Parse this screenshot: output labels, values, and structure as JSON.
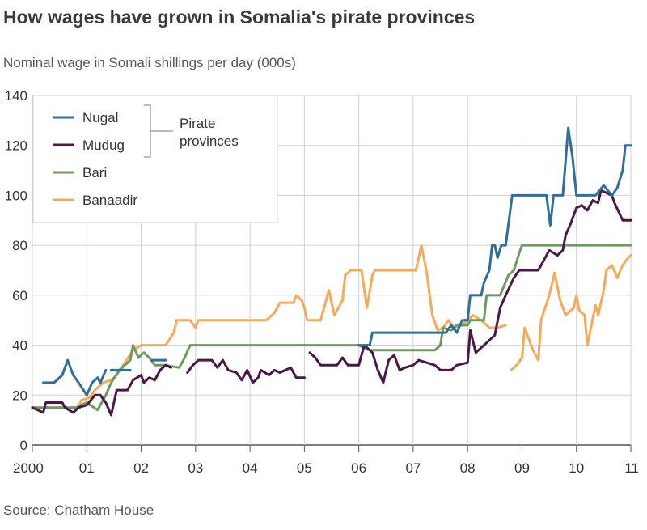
{
  "title": "How wages have grown in Somalia's pirate provinces",
  "subtitle": "Nominal wage in Somali shillings per day (000s)",
  "source": "Source: Chatham House",
  "chart_data": {
    "type": "line",
    "title": "How wages have grown in Somalia's pirate provinces",
    "ylabel": "Nominal wage in Somali shillings per day (000s)",
    "xlabel": "",
    "xlim": [
      2000,
      2011
    ],
    "ylim": [
      0,
      140
    ],
    "yticks": [
      0,
      20,
      40,
      60,
      80,
      100,
      120,
      140
    ],
    "xticks": [
      2000,
      2001,
      2002,
      2003,
      2004,
      2005,
      2006,
      2007,
      2008,
      2009,
      2010,
      2011
    ],
    "xtick_labels": [
      "2000",
      "01",
      "02",
      "03",
      "04",
      "05",
      "06",
      "07",
      "08",
      "09",
      "10",
      "11"
    ],
    "grid": true,
    "legend_position": "top-left",
    "legend_group_label": [
      "Pirate",
      "provinces"
    ],
    "series": [
      {
        "name": "Nugal",
        "color": "#2f6f9e",
        "segments": [
          [
            [
              2000.2,
              25
            ],
            [
              2000.4,
              25
            ],
            [
              2000.55,
              28
            ],
            [
              2000.65,
              34
            ],
            [
              2000.75,
              28
            ],
            [
              2000.85,
              25
            ],
            [
              2001.0,
              20
            ],
            [
              2001.1,
              25
            ],
            [
              2001.2,
              27
            ],
            [
              2001.25,
              25
            ],
            [
              2001.35,
              30
            ]
          ],
          [
            [
              2001.45,
              30
            ],
            [
              2001.8,
              30
            ]
          ],
          [
            [
              2002.2,
              34
            ],
            [
              2002.45,
              34
            ]
          ],
          [
            [
              2006.0,
              40
            ],
            [
              2006.2,
              40
            ],
            [
              2006.25,
              45
            ],
            [
              2007.6,
              45
            ],
            [
              2007.7,
              48
            ],
            [
              2007.8,
              45
            ],
            [
              2007.9,
              50
            ],
            [
              2008.0,
              50
            ],
            [
              2008.05,
              60
            ],
            [
              2008.25,
              60
            ],
            [
              2008.3,
              65
            ],
            [
              2008.4,
              70
            ],
            [
              2008.45,
              80
            ],
            [
              2008.5,
              80
            ],
            [
              2008.55,
              75
            ],
            [
              2008.62,
              80
            ],
            [
              2008.7,
              80
            ],
            [
              2008.82,
              100
            ],
            [
              2009.45,
              100
            ],
            [
              2009.52,
              88
            ],
            [
              2009.58,
              100
            ],
            [
              2009.75,
              100
            ],
            [
              2009.85,
              127
            ],
            [
              2009.93,
              115
            ],
            [
              2010.0,
              100
            ],
            [
              2010.35,
              100
            ],
            [
              2010.5,
              104
            ],
            [
              2010.65,
              100
            ],
            [
              2010.75,
              103
            ],
            [
              2010.85,
              110
            ],
            [
              2010.9,
              120
            ],
            [
              2011.0,
              120
            ]
          ]
        ]
      },
      {
        "name": "Mudug",
        "color": "#4a1747",
        "segments": [
          [
            [
              2000.0,
              15
            ],
            [
              2000.2,
              13
            ],
            [
              2000.25,
              17
            ],
            [
              2000.55,
              17
            ],
            [
              2000.6,
              15
            ],
            [
              2000.75,
              13
            ],
            [
              2000.85,
              15
            ],
            [
              2001.0,
              16
            ],
            [
              2001.15,
              20
            ],
            [
              2001.25,
              20
            ],
            [
              2001.35,
              17
            ],
            [
              2001.45,
              12
            ],
            [
              2001.55,
              22
            ],
            [
              2001.75,
              22
            ],
            [
              2001.85,
              26
            ],
            [
              2002.0,
              28
            ],
            [
              2002.05,
              25
            ],
            [
              2002.15,
              27
            ],
            [
              2002.25,
              26
            ],
            [
              2002.35,
              30
            ],
            [
              2002.45,
              32
            ],
            [
              2002.55,
              31
            ]
          ],
          [
            [
              2002.85,
              29
            ],
            [
              2002.95,
              32
            ],
            [
              2003.05,
              34
            ],
            [
              2003.3,
              34
            ],
            [
              2003.4,
              31
            ],
            [
              2003.5,
              34
            ],
            [
              2003.6,
              30
            ],
            [
              2003.75,
              29
            ],
            [
              2003.85,
              26
            ],
            [
              2003.95,
              30
            ],
            [
              2004.05,
              25
            ],
            [
              2004.15,
              27
            ],
            [
              2004.2,
              30
            ],
            [
              2004.35,
              28
            ],
            [
              2004.45,
              30
            ],
            [
              2004.55,
              29
            ],
            [
              2004.65,
              30
            ],
            [
              2004.75,
              31
            ],
            [
              2004.85,
              27
            ],
            [
              2005.0,
              27
            ]
          ],
          [
            [
              2005.1,
              37
            ],
            [
              2005.2,
              35
            ],
            [
              2005.3,
              32
            ],
            [
              2005.6,
              32
            ],
            [
              2005.7,
              35
            ],
            [
              2005.8,
              32
            ],
            [
              2006.0,
              32
            ],
            [
              2006.1,
              40
            ],
            [
              2006.25,
              37
            ],
            [
              2006.35,
              30
            ],
            [
              2006.45,
              25
            ],
            [
              2006.55,
              34
            ],
            [
              2006.65,
              36
            ],
            [
              2006.75,
              30
            ],
            [
              2006.85,
              31
            ],
            [
              2007.0,
              32
            ],
            [
              2007.1,
              34
            ],
            [
              2007.4,
              32
            ],
            [
              2007.5,
              30
            ],
            [
              2007.7,
              30
            ],
            [
              2007.8,
              32
            ],
            [
              2008.0,
              33
            ],
            [
              2008.05,
              46
            ],
            [
              2008.15,
              37
            ],
            [
              2008.3,
              40
            ],
            [
              2008.5,
              44
            ],
            [
              2008.6,
              55
            ],
            [
              2008.7,
              60
            ],
            [
              2008.85,
              67
            ],
            [
              2008.95,
              70
            ],
            [
              2009.3,
              70
            ],
            [
              2009.4,
              74
            ],
            [
              2009.5,
              78
            ],
            [
              2009.65,
              76
            ],
            [
              2009.75,
              78
            ],
            [
              2009.8,
              84
            ],
            [
              2009.9,
              89
            ],
            [
              2010.0,
              95
            ],
            [
              2010.1,
              96
            ],
            [
              2010.2,
              94
            ],
            [
              2010.3,
              98
            ],
            [
              2010.4,
              97
            ],
            [
              2010.45,
              102
            ],
            [
              2010.55,
              101
            ],
            [
              2010.65,
              100
            ],
            [
              2010.7,
              97
            ],
            [
              2010.85,
              90
            ],
            [
              2011.0,
              90
            ]
          ]
        ]
      },
      {
        "name": "Bari",
        "color": "#6f9963",
        "segments": [
          [
            [
              2000.0,
              15
            ],
            [
              2000.2,
              15
            ],
            [
              2000.5,
              15
            ],
            [
              2000.8,
              15
            ],
            [
              2001.0,
              17
            ],
            [
              2001.2,
              14
            ],
            [
              2001.35,
              20
            ],
            [
              2001.45,
              25
            ],
            [
              2001.6,
              30
            ],
            [
              2001.7,
              32
            ],
            [
              2001.8,
              34
            ],
            [
              2001.85,
              40
            ],
            [
              2001.95,
              35
            ],
            [
              2002.05,
              37
            ],
            [
              2002.15,
              35
            ],
            [
              2002.25,
              32
            ],
            [
              2002.45,
              32
            ],
            [
              2002.7,
              31
            ],
            [
              2002.8,
              35
            ],
            [
              2002.9,
              40
            ],
            [
              2005.5,
              40
            ],
            [
              2006.0,
              40
            ],
            [
              2006.2,
              38
            ],
            [
              2006.5,
              38
            ],
            [
              2007.0,
              38
            ],
            [
              2007.4,
              38
            ],
            [
              2007.5,
              40
            ],
            [
              2007.55,
              47
            ],
            [
              2007.7,
              46
            ],
            [
              2007.8,
              48
            ],
            [
              2008.0,
              48
            ],
            [
              2008.05,
              50
            ],
            [
              2008.3,
              50
            ],
            [
              2008.35,
              60
            ],
            [
              2008.6,
              60
            ],
            [
              2008.75,
              68
            ],
            [
              2008.85,
              70
            ],
            [
              2008.95,
              77
            ],
            [
              2009.0,
              80
            ],
            [
              2011.0,
              80
            ]
          ]
        ]
      },
      {
        "name": "Banaadir",
        "color": "#f4aa59",
        "segments": [
          [
            [
              2000.0,
              15
            ],
            [
              2000.5,
              15
            ],
            [
              2000.85,
              15
            ],
            [
              2000.9,
              18
            ],
            [
              2001.05,
              19
            ],
            [
              2001.15,
              22
            ],
            [
              2001.3,
              25
            ],
            [
              2001.45,
              26
            ],
            [
              2001.55,
              28
            ],
            [
              2001.7,
              33
            ],
            [
              2001.85,
              38
            ],
            [
              2002.0,
              40
            ],
            [
              2002.45,
              40
            ],
            [
              2002.6,
              45
            ],
            [
              2002.65,
              50
            ],
            [
              2002.9,
              50
            ],
            [
              2003.0,
              47
            ],
            [
              2003.05,
              50
            ],
            [
              2004.3,
              50
            ],
            [
              2004.45,
              53
            ],
            [
              2004.55,
              57
            ],
            [
              2004.8,
              57
            ],
            [
              2004.85,
              60
            ],
            [
              2004.95,
              58
            ],
            [
              2005.0,
              55
            ],
            [
              2005.05,
              50
            ],
            [
              2005.3,
              50
            ],
            [
              2005.45,
              62
            ],
            [
              2005.55,
              52
            ],
            [
              2005.7,
              58
            ],
            [
              2005.75,
              68
            ],
            [
              2005.85,
              70
            ],
            [
              2006.05,
              70
            ],
            [
              2006.15,
              55
            ],
            [
              2006.25,
              68
            ],
            [
              2006.3,
              70
            ],
            [
              2007.05,
              70
            ],
            [
              2007.15,
              80
            ],
            [
              2007.25,
              69
            ],
            [
              2007.35,
              52
            ],
            [
              2007.45,
              46
            ],
            [
              2007.55,
              47
            ],
            [
              2007.65,
              50
            ],
            [
              2007.75,
              47
            ],
            [
              2007.9,
              48
            ],
            [
              2008.1,
              52
            ],
            [
              2008.25,
              50
            ],
            [
              2008.4,
              47
            ],
            [
              2008.55,
              47
            ],
            [
              2008.7,
              48
            ]
          ],
          [
            [
              2008.8,
              30
            ],
            [
              2008.9,
              32
            ],
            [
              2009.0,
              35
            ],
            [
              2009.05,
              47
            ],
            [
              2009.2,
              38
            ],
            [
              2009.3,
              34
            ],
            [
              2009.35,
              50
            ],
            [
              2009.5,
              60
            ],
            [
              2009.6,
              69
            ],
            [
              2009.7,
              58
            ],
            [
              2009.8,
              52
            ],
            [
              2009.95,
              55
            ],
            [
              2010.0,
              60
            ],
            [
              2010.05,
              54
            ],
            [
              2010.15,
              52
            ],
            [
              2010.2,
              40
            ],
            [
              2010.35,
              56
            ],
            [
              2010.4,
              52
            ],
            [
              2010.5,
              62
            ],
            [
              2010.55,
              70
            ],
            [
              2010.65,
              72
            ],
            [
              2010.75,
              67
            ],
            [
              2010.85,
              72
            ],
            [
              2010.95,
              75
            ],
            [
              2011.0,
              76
            ]
          ]
        ]
      }
    ]
  }
}
